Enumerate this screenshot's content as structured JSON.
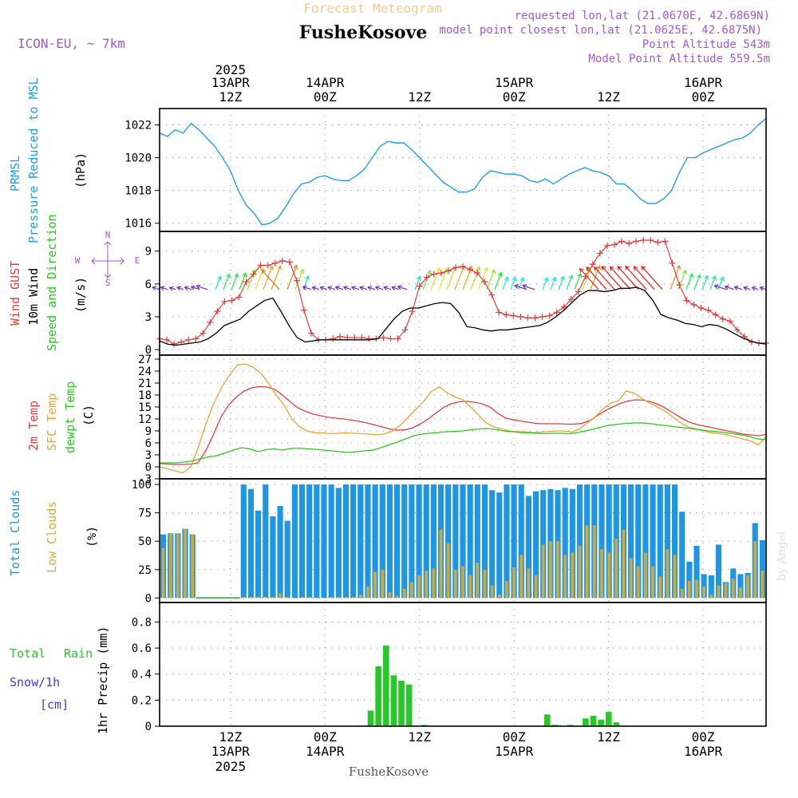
{
  "header": {
    "title_top": "Forecast Meteogram",
    "location": "FusheKosove",
    "model": "ICON-EU, ~ 7km",
    "requested": "requested lon,lat (21.0670E, 42.6869N)",
    "closest": "model point closest lon,lat (21.0625E, 42.6875N)",
    "point_alt": "Point Altitude 543m",
    "model_alt": "Model Point Altitude 559.5m",
    "footer": "FusheKosove",
    "watermark": "by Angel"
  },
  "colors": {
    "pressure": "#1ea0e6",
    "gust": "#e63c3c",
    "wind": "#000000",
    "temp2m": "#e63c3c",
    "sfc": "#e6a532",
    "dew": "#28c81e",
    "total_clouds": "#1e96e6",
    "low_clouds": "#d2aa3c",
    "rain": "#28c828",
    "purple": "#a05ad2"
  },
  "time_axis": {
    "top_year": "2025",
    "labels": [
      {
        "hour": 12,
        "line1": "13APR",
        "line2": "12Z"
      },
      {
        "hour": 24,
        "line1": "14APR",
        "line2": "00Z"
      },
      {
        "hour": 36,
        "line1": "",
        "line2": "12Z"
      },
      {
        "hour": 48,
        "line1": "15APR",
        "line2": "00Z"
      },
      {
        "hour": 60,
        "line1": "",
        "line2": "12Z"
      },
      {
        "hour": 72,
        "line1": "16APR",
        "line2": "00Z"
      }
    ],
    "bottom_labels": [
      {
        "hour": 12,
        "line1": "12Z",
        "line2": "13APR",
        "line3": "2025"
      },
      {
        "hour": 24,
        "line1": "00Z",
        "line2": "14APR",
        "line3": ""
      },
      {
        "hour": 36,
        "line1": "12Z",
        "line2": "",
        "line3": ""
      },
      {
        "hour": 48,
        "line1": "00Z",
        "line2": "15APR",
        "line3": ""
      },
      {
        "hour": 60,
        "line1": "12Z",
        "line2": "",
        "line3": ""
      },
      {
        "hour": 72,
        "line1": "00Z",
        "line2": "16APR",
        "line3": ""
      }
    ]
  },
  "panels": {
    "pressure": {
      "label1": "PRMSL",
      "label2": "Pressure Reduced to MSL",
      "unit": "(hPa)"
    },
    "wind": {
      "label1": "Wind GUST",
      "label2": "10m Wind",
      "label3": "Speed and Direction",
      "unit": "(m/s)",
      "compass_n": "N",
      "compass_s": "S",
      "compass_w": "W",
      "compass_e": "E"
    },
    "temp": {
      "label1": "2m Temp",
      "label2": "SFC Temp",
      "label3": "dewpt Temp",
      "unit": "(C)"
    },
    "clouds": {
      "label1": "Total Clouds",
      "label2": "Low Clouds",
      "unit": "(%)"
    },
    "precip": {
      "label1": "Total",
      "label1b": "Rain",
      "label2": "Snow/1h",
      "label3": "[cm]",
      "unit": "1hr Precip (mm)"
    }
  },
  "chart_data": [
    {
      "type": "line",
      "name": "pressure",
      "x_hours_start": 1,
      "ylim": [
        1015.5,
        1023.0
      ],
      "yticks": [
        1016,
        1018,
        1020,
        1022
      ],
      "x": [
        1,
        2,
        3,
        4,
        5,
        6,
        7,
        8,
        9,
        10,
        11,
        12,
        13,
        14,
        15,
        16,
        17,
        18,
        19,
        20,
        21,
        22,
        23,
        24,
        25,
        26,
        27,
        28,
        29,
        30,
        31,
        32,
        33,
        34,
        35,
        36,
        37,
        38,
        39,
        40,
        41,
        42,
        43,
        44,
        45,
        46,
        47,
        48,
        49,
        50,
        51,
        52,
        53,
        54,
        55,
        56,
        57,
        58,
        59,
        60,
        61,
        62,
        63,
        64,
        65,
        66,
        67,
        68,
        69,
        70,
        71,
        72,
        73,
        74,
        75,
        76,
        77,
        78
      ],
      "values": [
        1021.5,
        1021.3,
        1021.7,
        1021.5,
        1022.1,
        1021.7,
        1021.2,
        1020.7,
        1020.0,
        1019.2,
        1018.0,
        1017.1,
        1016.6,
        1015.9,
        1016.0,
        1016.3,
        1017.0,
        1017.8,
        1018.4,
        1018.5,
        1018.8,
        1018.9,
        1018.7,
        1018.6,
        1018.6,
        1018.9,
        1019.3,
        1020.0,
        1020.7,
        1021.0,
        1020.9,
        1020.9,
        1020.5,
        1020.0,
        1019.5,
        1019.0,
        1018.5,
        1018.2,
        1017.9,
        1017.9,
        1018.1,
        1018.8,
        1019.2,
        1019.1,
        1019.0,
        1019.0,
        1018.9,
        1018.6,
        1018.5,
        1018.7,
        1018.4,
        1018.7,
        1019.0,
        1019.2,
        1019.4,
        1019.2,
        1019.1,
        1018.9,
        1018.4,
        1018.4,
        1018.0,
        1017.5,
        1017.2,
        1017.2,
        1017.5,
        1018.0,
        1019.1,
        1020.0,
        1020.0,
        1020.3,
        1020.5,
        1020.7,
        1020.9,
        1021.1,
        1021.2,
        1021.5,
        1022.0,
        1022.4
      ]
    },
    {
      "type": "line",
      "name": "wind",
      "ylim": [
        -0.5,
        10.8
      ],
      "yticks": [
        0,
        3,
        6,
        9
      ],
      "series": [
        {
          "name": "Wind GUST",
          "values": [
            1.0,
            0.9,
            0.5,
            0.7,
            0.9,
            1.0,
            1.5,
            2.5,
            3.5,
            4.4,
            4.5,
            4.8,
            6.2,
            6.9,
            7.7,
            7.7,
            7.9,
            8.1,
            8.0,
            6.3,
            3.6,
            1.5,
            0.9,
            0.9,
            1.0,
            1.2,
            1.1,
            1.1,
            1.1,
            1.0,
            1.0,
            1.1,
            1.0,
            1.0,
            1.8,
            3.5,
            5.8,
            6.6,
            6.9,
            7.0,
            7.2,
            7.5,
            7.6,
            7.3,
            7.0,
            6.2,
            5.0,
            3.4,
            3.2,
            3.1,
            3.0,
            2.9,
            2.9,
            3.0,
            3.1,
            3.4,
            3.9,
            4.6,
            5.3,
            6.7,
            7.8,
            8.8,
            9.5,
            9.6,
            9.9,
            9.7,
            9.9,
            10.0,
            10.0,
            9.8,
            9.9,
            7.9,
            5.9,
            4.5,
            4.1,
            3.8,
            3.6,
            3.2,
            2.8,
            2.6,
            1.8,
            1.2,
            0.7,
            0.6,
            0.6
          ]
        },
        {
          "name": "10m Wind",
          "values": [
            0.8,
            0.5,
            0.4,
            0.5,
            0.6,
            0.7,
            1.0,
            1.5,
            2.2,
            2.5,
            2.8,
            3.5,
            4.0,
            4.5,
            4.7,
            3.5,
            2.2,
            1.1,
            0.7,
            0.8,
            0.9,
            0.9,
            0.9,
            0.9,
            0.9,
            0.9,
            0.9,
            1.0,
            1.9,
            2.8,
            3.5,
            3.8,
            3.8,
            4.0,
            4.2,
            4.3,
            4.2,
            3.4,
            2.1,
            2.0,
            1.8,
            1.7,
            1.8,
            1.8,
            1.9,
            2.0,
            2.1,
            2.2,
            2.5,
            3.0,
            3.6,
            4.3,
            5.0,
            5.4,
            5.4,
            5.3,
            5.4,
            5.6,
            5.6,
            5.7,
            5.4,
            4.5,
            3.2,
            2.9,
            2.7,
            2.4,
            2.3,
            2.1,
            2.3,
            2.2,
            1.9,
            1.5,
            1.1,
            0.8,
            0.6,
            0.5
          ]
        }
      ],
      "arrows": {
        "y": 5.5,
        "from_hour": 1,
        "to_hour": 78,
        "note": "direction arrows colored by speed"
      }
    },
    {
      "type": "line",
      "name": "temperature",
      "ylim": [
        -3,
        28
      ],
      "yticks": [
        -3,
        0,
        3,
        6,
        9,
        12,
        15,
        18,
        21,
        24,
        27
      ],
      "series": [
        {
          "name": "2m Temp",
          "values": [
            0.8,
            0.7,
            0.6,
            0.6,
            0.7,
            1.0,
            4.0,
            8.0,
            12.5,
            15.5,
            17.5,
            19.0,
            19.8,
            20.1,
            20.0,
            19.4,
            18.0,
            16.3,
            14.8,
            13.9,
            13.2,
            12.8,
            12.4,
            12.2,
            12.0,
            11.7,
            11.4,
            11.0,
            10.5,
            10.0,
            9.5,
            9.2,
            9.3,
            9.8,
            10.8,
            12.0,
            13.5,
            14.9,
            15.8,
            16.3,
            16.4,
            16.2,
            15.8,
            15.0,
            13.5,
            12.3,
            11.8,
            11.5,
            11.2,
            10.9,
            10.8,
            10.8,
            10.8,
            10.7,
            10.7,
            10.9,
            11.6,
            12.8,
            14.0,
            15.0,
            15.9,
            16.5,
            16.8,
            16.7,
            16.3,
            15.6,
            14.6,
            13.4,
            12.2,
            11.2,
            10.6,
            10.2,
            9.8,
            9.4,
            9.0,
            8.6,
            8.2,
            8.0,
            7.8,
            8.1
          ]
        },
        {
          "name": "SFC Temp",
          "values": [
            0.0,
            -0.5,
            -1.0,
            -1.5,
            0.0,
            5.0,
            11.0,
            16.0,
            20.0,
            23.0,
            25.5,
            25.8,
            25.0,
            23.5,
            21.0,
            18.0,
            15.5,
            12.0,
            10.0,
            9.0,
            8.5,
            8.5,
            8.3,
            8.4,
            8.5,
            8.4,
            8.3,
            8.2,
            8.0,
            8.3,
            9.0,
            10.5,
            12.5,
            14.5,
            16.5,
            19.0,
            20.0,
            18.5,
            17.5,
            16.8,
            15.0,
            13.0,
            11.0,
            10.0,
            9.5,
            9.0,
            8.8,
            8.8,
            8.6,
            8.7,
            8.8,
            9.0,
            9.0,
            8.7,
            9.5,
            11.0,
            12.5,
            14.5,
            16.0,
            16.5,
            19.0,
            18.5,
            17.2,
            16.0,
            15.0,
            14.0,
            12.5,
            11.0,
            10.0,
            9.5,
            9.0,
            8.5,
            8.3,
            8.0,
            7.5,
            7.0,
            6.5,
            5.5,
            7.5
          ]
        },
        {
          "name": "dewpt Temp",
          "values": [
            1.0,
            1.0,
            1.0,
            1.2,
            1.5,
            2.0,
            2.5,
            2.8,
            3.5,
            4.2,
            4.8,
            4.5,
            3.8,
            4.3,
            4.5,
            4.2,
            4.6,
            4.7,
            4.5,
            4.4,
            4.2,
            4.0,
            3.8,
            3.6,
            3.8,
            4.0,
            4.2,
            4.8,
            5.5,
            6.2,
            7.0,
            7.8,
            8.2,
            8.4,
            8.6,
            8.8,
            8.9,
            9.0,
            9.3,
            9.5,
            9.6,
            9.4,
            9.0,
            8.8,
            8.6,
            8.5,
            8.4,
            8.3,
            8.4,
            8.4,
            8.3,
            8.6,
            9.0,
            9.5,
            10.0,
            10.5,
            10.7,
            10.9,
            11.0,
            11.0,
            10.8,
            10.5,
            10.3,
            10.0,
            9.8,
            9.5,
            9.3,
            9.0,
            8.8,
            8.6,
            8.3,
            8.0,
            7.6,
            7.0,
            6.8
          ]
        }
      ]
    },
    {
      "type": "bar",
      "name": "clouds",
      "ylim": [
        -4,
        105
      ],
      "yticks": [
        0,
        25,
        50,
        75,
        100
      ],
      "series": [
        {
          "name": "Total Clouds",
          "values": [
            56,
            57,
            57,
            61,
            56,
            0,
            0,
            0,
            0,
            0,
            0,
            100,
            96,
            77,
            100,
            72,
            81,
            68,
            100,
            100,
            100,
            100,
            100,
            100,
            97,
            100,
            100,
            100,
            100,
            100,
            100,
            100,
            100,
            100,
            100,
            100,
            100,
            100,
            100,
            100,
            100,
            100,
            100,
            100,
            100,
            95,
            93,
            100,
            100,
            100,
            90,
            94,
            95,
            96,
            95,
            97,
            96,
            100,
            100,
            100,
            100,
            100,
            100,
            100,
            100,
            100,
            100,
            100,
            100,
            100,
            100,
            76,
            32,
            46,
            21,
            20,
            47,
            14,
            26,
            21,
            22,
            66,
            51
          ]
        },
        {
          "name": "Low Clouds",
          "values": [
            44,
            57,
            57,
            61,
            56,
            0,
            0,
            0,
            0,
            0,
            0,
            1,
            1,
            1,
            1,
            1,
            4,
            1,
            0,
            1,
            1,
            0,
            0,
            1,
            1,
            1,
            1,
            3,
            10,
            23,
            25,
            5,
            2,
            8,
            14,
            20,
            24,
            26,
            60,
            48,
            25,
            28,
            20,
            31,
            25,
            11,
            3,
            15,
            27,
            38,
            26,
            20,
            47,
            50,
            50,
            38,
            40,
            46,
            64,
            64,
            43,
            40,
            52,
            60,
            35,
            28,
            40,
            28,
            19,
            43,
            38,
            8,
            15,
            16,
            10,
            3,
            11,
            13,
            17,
            9,
            20,
            50,
            24
          ]
        }
      ]
    },
    {
      "type": "bar",
      "name": "precip",
      "ylim": [
        0,
        0.95
      ],
      "yticks": [
        0,
        0.2,
        0.4,
        0.6,
        0.8
      ],
      "series": [
        {
          "name": "Total Rain",
          "values": [
            0,
            0,
            0,
            0,
            0,
            0,
            0,
            0,
            0,
            0,
            0,
            0,
            0,
            0,
            0,
            0,
            0,
            0,
            0,
            0,
            0,
            0,
            0,
            0,
            0,
            0,
            0,
            0.12,
            0.46,
            0.62,
            0.39,
            0.35,
            0.32,
            0,
            0.01,
            0,
            0,
            0,
            0,
            0,
            0,
            0,
            0,
            0,
            0,
            0,
            0,
            0,
            0,
            0,
            0.09,
            0.01,
            0,
            0.01,
            0,
            0.06,
            0.08,
            0.05,
            0.11,
            0.03,
            0,
            0,
            0,
            0,
            0,
            0,
            0,
            0,
            0,
            0,
            0,
            0,
            0,
            0,
            0,
            0,
            0,
            0,
            0
          ]
        }
      ]
    }
  ]
}
